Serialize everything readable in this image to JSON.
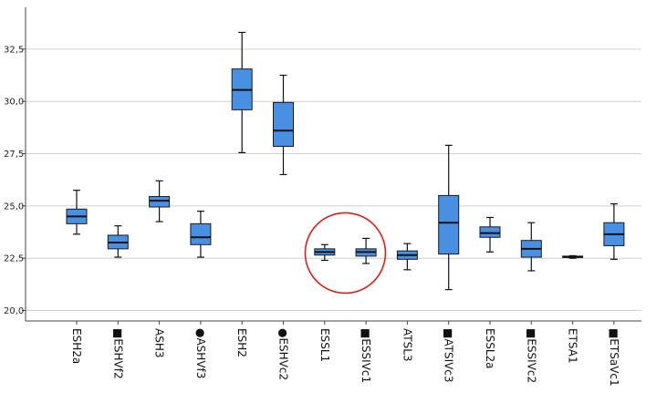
{
  "chart_data": {
    "type": "boxplot",
    "ylim": [
      19.5,
      34.5
    ],
    "y_ticks": [
      20.0,
      22.5,
      25.0,
      27.5,
      30.0,
      32.5
    ],
    "y_tick_labels": [
      "20,0",
      "22,5",
      "25,0",
      "27,5",
      "30,0",
      "32,5"
    ],
    "grid": true,
    "box_color": "#4a90e2",
    "highlight_color": "#d62020",
    "categories": [
      "ESH2a",
      "■ESHVf2",
      "ASH3",
      "●ASHVf3",
      "ESH2",
      "●ESHVc2",
      "ESSL1",
      "■ESSIVc1",
      "ATSL3",
      "■ATSIVc3",
      "ESSL2a",
      "■ESSIVc2",
      "ETSA1",
      "■ETSaVc1"
    ],
    "series": [
      {
        "boxes": [
          {
            "min": 23.65,
            "q1": 24.15,
            "median": 24.5,
            "q3": 24.85,
            "max": 25.75
          },
          {
            "min": 22.55,
            "q1": 22.95,
            "median": 23.25,
            "q3": 23.6,
            "max": 24.05
          },
          {
            "min": 24.25,
            "q1": 24.95,
            "median": 25.25,
            "q3": 25.45,
            "max": 26.2
          },
          {
            "min": 22.55,
            "q1": 23.15,
            "median": 23.5,
            "q3": 24.15,
            "max": 24.75
          },
          {
            "min": 27.55,
            "q1": 29.6,
            "median": 30.55,
            "q3": 31.55,
            "max": 33.3
          },
          {
            "min": 26.5,
            "q1": 27.85,
            "median": 28.6,
            "q3": 29.95,
            "max": 31.25
          },
          {
            "min": 22.4,
            "q1": 22.65,
            "median": 22.8,
            "q3": 22.95,
            "max": 23.15
          },
          {
            "min": 22.25,
            "q1": 22.6,
            "median": 22.8,
            "q3": 22.95,
            "max": 23.45
          },
          {
            "min": 21.95,
            "q1": 22.45,
            "median": 22.65,
            "q3": 22.85,
            "max": 23.2
          },
          {
            "min": 21.0,
            "q1": 22.7,
            "median": 24.2,
            "q3": 25.5,
            "max": 27.9
          },
          {
            "min": 22.8,
            "q1": 23.5,
            "median": 23.7,
            "q3": 24.0,
            "max": 24.45
          },
          {
            "min": 21.9,
            "q1": 22.55,
            "median": 22.95,
            "q3": 23.35,
            "max": 24.2
          },
          {
            "min": 22.5,
            "q1": 22.55,
            "median": 22.57,
            "q3": 22.6,
            "max": 22.62
          },
          {
            "min": 22.45,
            "q1": 23.1,
            "median": 23.65,
            "q3": 24.2,
            "max": 25.1
          }
        ]
      }
    ],
    "highlight_circle": {
      "around_categories": [
        "ESSL1",
        "■ESSIVc1"
      ],
      "y_center": 22.75
    }
  }
}
